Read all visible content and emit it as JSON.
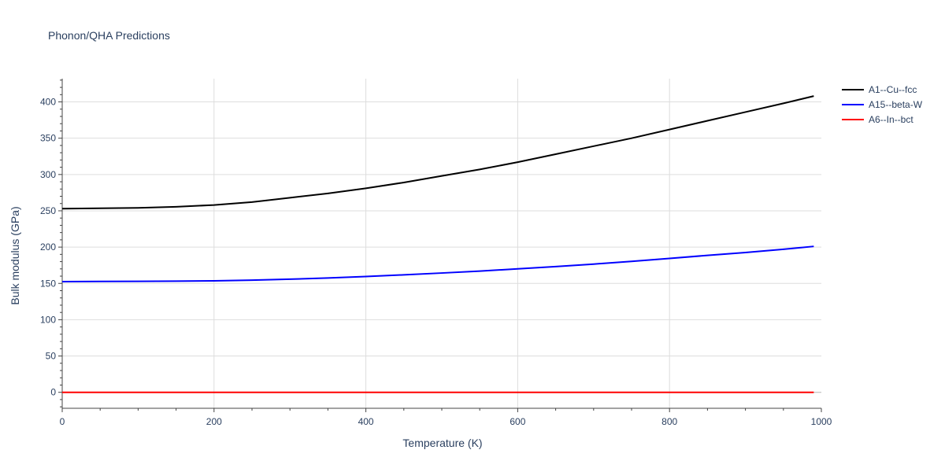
{
  "chart_data": {
    "type": "line",
    "title": "Phonon/QHA Predictions",
    "xlabel": "Temperature (K)",
    "ylabel": "Bulk modulus (GPa)",
    "xlim": [
      0,
      1000
    ],
    "ylim": [
      -22,
      432
    ],
    "x_ticks": [
      0,
      200,
      400,
      600,
      800,
      1000
    ],
    "y_ticks": [
      0,
      50,
      100,
      150,
      200,
      250,
      300,
      350,
      400
    ],
    "grid": true,
    "legend_position": "top-right",
    "series": [
      {
        "name": "A1--Cu--fcc",
        "color": "#000000",
        "x": [
          0,
          50,
          100,
          150,
          200,
          250,
          300,
          350,
          400,
          450,
          500,
          550,
          600,
          650,
          700,
          750,
          800,
          850,
          900,
          950,
          990
        ],
        "y": [
          253,
          253.5,
          254,
          255.5,
          258,
          262,
          268,
          274,
          281,
          289,
          298,
          307,
          317,
          328,
          339,
          350,
          362,
          374,
          386,
          398,
          408
        ]
      },
      {
        "name": "A15--beta-W",
        "color": "#0000ff",
        "x": [
          0,
          50,
          100,
          150,
          200,
          250,
          300,
          350,
          400,
          450,
          500,
          550,
          600,
          650,
          700,
          750,
          800,
          850,
          900,
          950,
          990
        ],
        "y": [
          152.5,
          152.7,
          152.9,
          153.1,
          153.5,
          154.5,
          155.8,
          157.5,
          159.5,
          161.8,
          164.3,
          167,
          170,
          173.2,
          176.6,
          180.3,
          184.4,
          188.6,
          192.6,
          197,
          201
        ]
      },
      {
        "name": "A6--In--bct",
        "color": "#ff0000",
        "x": [
          0,
          990
        ],
        "y": [
          0,
          0
        ]
      }
    ]
  }
}
